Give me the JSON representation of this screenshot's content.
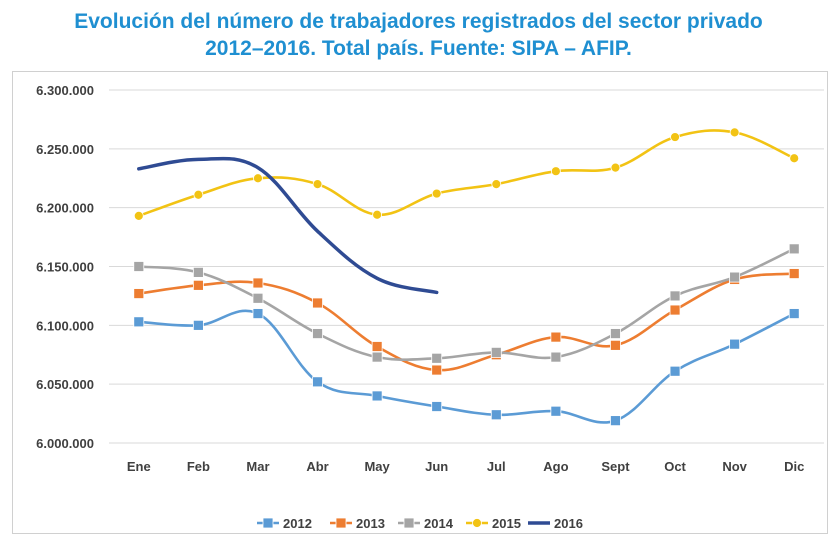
{
  "chart_data": {
    "type": "line",
    "title_line1": "Evolución del número de trabajadores registrados del sector privado",
    "title_line2": "2012–2016. Total país. Fuente: SIPA – AFIP.",
    "categories": [
      "Ene",
      "Feb",
      "Mar",
      "Abr",
      "May",
      "Jun",
      "Jul",
      "Ago",
      "Sept",
      "Oct",
      "Nov",
      "Dic"
    ],
    "ylim": [
      6000000,
      6300000
    ],
    "yticks": [
      6000000,
      6050000,
      6100000,
      6150000,
      6200000,
      6250000,
      6300000
    ],
    "ytick_labels": [
      "6.000.000",
      "6.050.000",
      "6.100.000",
      "6.150.000",
      "6.200.000",
      "6.250.000",
      "6.300.000"
    ],
    "grid": true,
    "legend_position": "bottom",
    "series": [
      {
        "name": "2012",
        "color": "#5b9bd5",
        "marker": "square",
        "values": [
          6103000,
          6100000,
          6110000,
          6052000,
          6040000,
          6031000,
          6024000,
          6027000,
          6019000,
          6061000,
          6084000,
          6110000
        ]
      },
      {
        "name": "2013",
        "color": "#ed7d31",
        "marker": "square",
        "values": [
          6127000,
          6134000,
          6136000,
          6119000,
          6082000,
          6062000,
          6075000,
          6090000,
          6083000,
          6113000,
          6139000,
          6144000
        ]
      },
      {
        "name": "2014",
        "color": "#a5a5a5",
        "marker": "square",
        "values": [
          6150000,
          6145000,
          6123000,
          6093000,
          6073000,
          6072000,
          6077000,
          6073000,
          6093000,
          6125000,
          6141000,
          6165000
        ]
      },
      {
        "name": "2015",
        "color": "#f2c314",
        "marker": "circle",
        "values": [
          6193000,
          6211000,
          6225000,
          6220000,
          6194000,
          6212000,
          6220000,
          6231000,
          6234000,
          6260000,
          6264000,
          6242000
        ]
      },
      {
        "name": "2016",
        "color": "#2f4b93",
        "marker": "none",
        "values": [
          6233000,
          6241000,
          6234000,
          6180000,
          6140000,
          6128000,
          null,
          null,
          null,
          null,
          null,
          null
        ]
      }
    ]
  }
}
